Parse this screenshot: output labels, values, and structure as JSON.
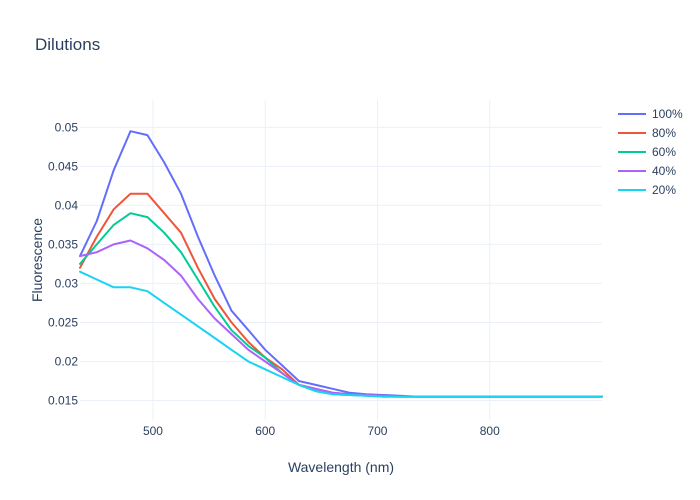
{
  "chart_data": {
    "type": "line",
    "title": "Dilutions",
    "xlabel": "Wavelength (nm)",
    "ylabel": "Fluorescence",
    "xlim": [
      435,
      900
    ],
    "ylim": [
      0.0125,
      0.0535
    ],
    "x_ticks": [
      500,
      600,
      700,
      800
    ],
    "y_ticks": [
      0.015,
      0.02,
      0.025,
      0.03,
      0.035,
      0.04,
      0.045,
      0.05
    ],
    "x_tick_labels": [
      "500",
      "600",
      "700",
      "800"
    ],
    "y_tick_labels": [
      "0.015",
      "0.02",
      "0.025",
      "0.03",
      "0.035",
      "0.04",
      "0.045",
      "0.05"
    ],
    "grid": true,
    "legend_position": "top-right",
    "x": [
      435,
      450,
      465,
      480,
      495,
      510,
      525,
      540,
      555,
      570,
      585,
      600,
      615,
      630,
      645,
      660,
      675,
      690,
      705,
      720,
      735,
      750,
      765,
      780,
      795,
      810,
      825,
      840,
      855,
      870,
      885,
      900
    ],
    "series": [
      {
        "name": "100%",
        "color": "#636efa",
        "values": [
          0.0335,
          0.038,
          0.0445,
          0.0495,
          0.049,
          0.0455,
          0.0415,
          0.036,
          0.031,
          0.0265,
          0.024,
          0.0215,
          0.0195,
          0.0175,
          0.017,
          0.0165,
          0.016,
          0.0158,
          0.0157,
          0.0156,
          0.0155,
          0.0155,
          0.0155,
          0.0155,
          0.0155,
          0.0155,
          0.0155,
          0.0155,
          0.0155,
          0.0155,
          0.0155,
          0.0155
        ]
      },
      {
        "name": "80%",
        "color": "#ef553b",
        "values": [
          0.032,
          0.036,
          0.0395,
          0.0415,
          0.0415,
          0.039,
          0.0365,
          0.032,
          0.028,
          0.025,
          0.0225,
          0.0205,
          0.019,
          0.017,
          0.0165,
          0.016,
          0.0158,
          0.0157,
          0.0156,
          0.0155,
          0.0155,
          0.0155,
          0.0155,
          0.0155,
          0.0155,
          0.0155,
          0.0155,
          0.0155,
          0.0155,
          0.0155,
          0.0155,
          0.0155
        ]
      },
      {
        "name": "60%",
        "color": "#00cc96",
        "values": [
          0.0325,
          0.035,
          0.0375,
          0.039,
          0.0385,
          0.0365,
          0.034,
          0.0305,
          0.027,
          0.024,
          0.022,
          0.0205,
          0.0185,
          0.017,
          0.0162,
          0.0158,
          0.0157,
          0.0156,
          0.0155,
          0.0155,
          0.0155,
          0.0155,
          0.0155,
          0.0155,
          0.0155,
          0.0155,
          0.0155,
          0.0155,
          0.0155,
          0.0155,
          0.0155,
          0.0155
        ]
      },
      {
        "name": "40%",
        "color": "#ab63fa",
        "values": [
          0.0335,
          0.034,
          0.035,
          0.0355,
          0.0345,
          0.033,
          0.031,
          0.028,
          0.0255,
          0.0235,
          0.0215,
          0.02,
          0.0185,
          0.017,
          0.0165,
          0.016,
          0.0158,
          0.0157,
          0.0156,
          0.0155,
          0.0155,
          0.0155,
          0.0155,
          0.0155,
          0.0155,
          0.0155,
          0.0155,
          0.0155,
          0.0155,
          0.0155,
          0.0155,
          0.0155
        ]
      },
      {
        "name": "20%",
        "color": "#19d3f3",
        "values": [
          0.0315,
          0.0305,
          0.0295,
          0.0295,
          0.029,
          0.0275,
          0.026,
          0.0245,
          0.023,
          0.0215,
          0.02,
          0.019,
          0.018,
          0.017,
          0.0162,
          0.0158,
          0.0157,
          0.0156,
          0.0155,
          0.0155,
          0.0155,
          0.0155,
          0.0155,
          0.0155,
          0.0155,
          0.0155,
          0.0155,
          0.0155,
          0.0155,
          0.0155,
          0.0155,
          0.0155
        ]
      }
    ]
  }
}
